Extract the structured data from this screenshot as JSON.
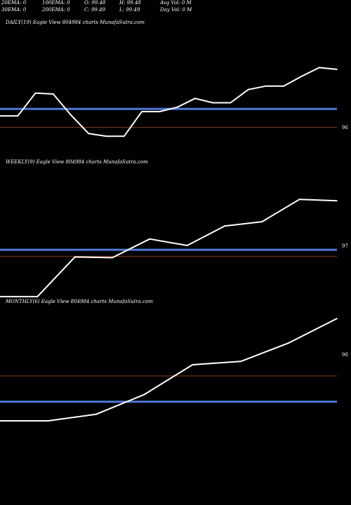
{
  "header": {
    "row1": [
      "20EMA: 0",
      "100EMA: 0",
      "O: 99.48",
      "H: 99.48",
      "Avg Vol: 0  M"
    ],
    "row2": [
      "30EMA: 0",
      "200EMA: 0",
      "C: 99.49",
      "L: 99.49",
      "Day Vol: 0  M"
    ]
  },
  "colors": {
    "background": "#000000",
    "price_line": "#ffffff",
    "ema_line": "#4d79d6",
    "ref_line": "#8b3a1a",
    "text": "#ffffff"
  },
  "chart_data": [
    {
      "type": "line",
      "title": "DAILY(19) Eagle  View  804984  charts MunafaSutra.com",
      "tick_label": "96",
      "x": [
        1,
        2,
        3,
        4,
        5,
        6,
        7,
        8,
        9,
        10,
        11,
        12,
        13,
        14,
        15,
        16,
        17,
        18,
        19,
        20
      ],
      "series": [
        {
          "values": [
            50,
            50,
            76,
            75,
            51,
            30,
            27,
            27,
            55,
            55,
            60,
            70,
            65,
            65,
            80,
            84,
            84,
            95,
            105,
            103
          ]
        }
      ],
      "ema_level": 58,
      "ref_level": 37,
      "ylim": [
        0,
        150
      ]
    },
    {
      "type": "line",
      "title": "WEEKLY(9) Eagle  View  804984  charts MunafaSutra.com",
      "tick_label": "97",
      "x": [
        1,
        2,
        3,
        4,
        5,
        6,
        7,
        8,
        9,
        10
      ],
      "series": [
        {
          "values": [
            2,
            2,
            57,
            56,
            82,
            73,
            100,
            106,
            137,
            135
          ]
        }
      ],
      "ema_level": 67,
      "ref_level": 58,
      "ylim": [
        0,
        180
      ]
    },
    {
      "type": "line",
      "title": "MONTHLY(6) Eagle  View  804984  charts MunafaSutra.com",
      "tick_label": "98",
      "x": [
        1,
        2,
        3,
        4,
        5,
        6,
        7,
        8
      ],
      "series": [
        {
          "values": [
            0,
            0,
            10,
            40,
            85,
            90,
            118,
            155
          ]
        }
      ],
      "ema_level": 29,
      "ref_level": 68,
      "ylim": [
        0,
        170
      ]
    }
  ]
}
